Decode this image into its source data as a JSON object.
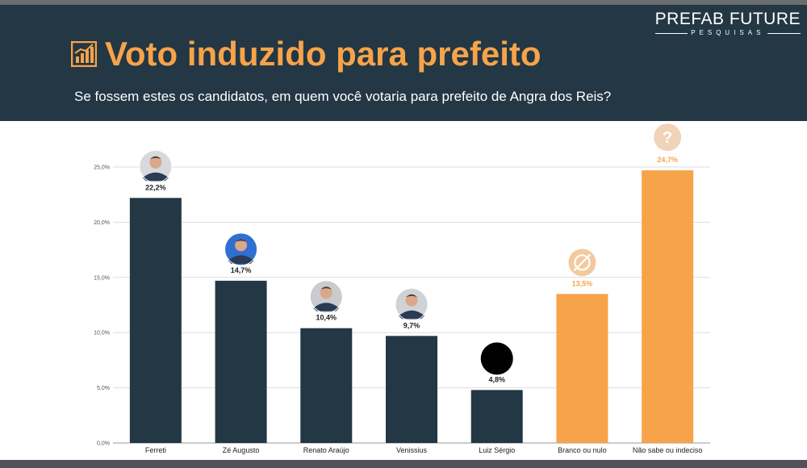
{
  "header": {
    "title": "Voto induzido para prefeito",
    "subtitle": "Se fossem estes os candidatos, em quem você votaria para prefeito de Angra dos Reis?",
    "logo_main": "PREFAB FUTURE",
    "logo_sub": "PESQUISAS"
  },
  "colors": {
    "header_bg": "#233744",
    "candidate_bar": "#233744",
    "other_bar": "#f7a34a",
    "title": "#f7a34a"
  },
  "chart_data": {
    "type": "bar",
    "categories": [
      "Ferreti",
      "Zé Augusto",
      "Renato Araújo",
      "Venissius",
      "Luiz Sérgio",
      "Branco ou nulo",
      "Não sabe ou indeciso"
    ],
    "values": [
      22.2,
      14.7,
      10.4,
      9.7,
      4.8,
      13.5,
      24.7
    ],
    "value_labels": [
      "22,2%",
      "14,7%",
      "10,4%",
      "9,7%",
      "4,8%",
      "13,5%",
      "24,7%"
    ],
    "bar_groups": [
      "candidate",
      "candidate",
      "candidate",
      "candidate",
      "candidate",
      "other",
      "other"
    ],
    "bar_icons": [
      "candidate-photo",
      "candidate-photo",
      "candidate-photo",
      "candidate-photo",
      "black-circle",
      "null-vote-icon",
      "question-icon"
    ],
    "y_ticks": [
      "0,0%",
      "5,0%",
      "10,0%",
      "15,0%",
      "20,0%",
      "25,0%"
    ],
    "ylim": [
      0,
      25
    ],
    "grid": true,
    "legend": "none"
  }
}
